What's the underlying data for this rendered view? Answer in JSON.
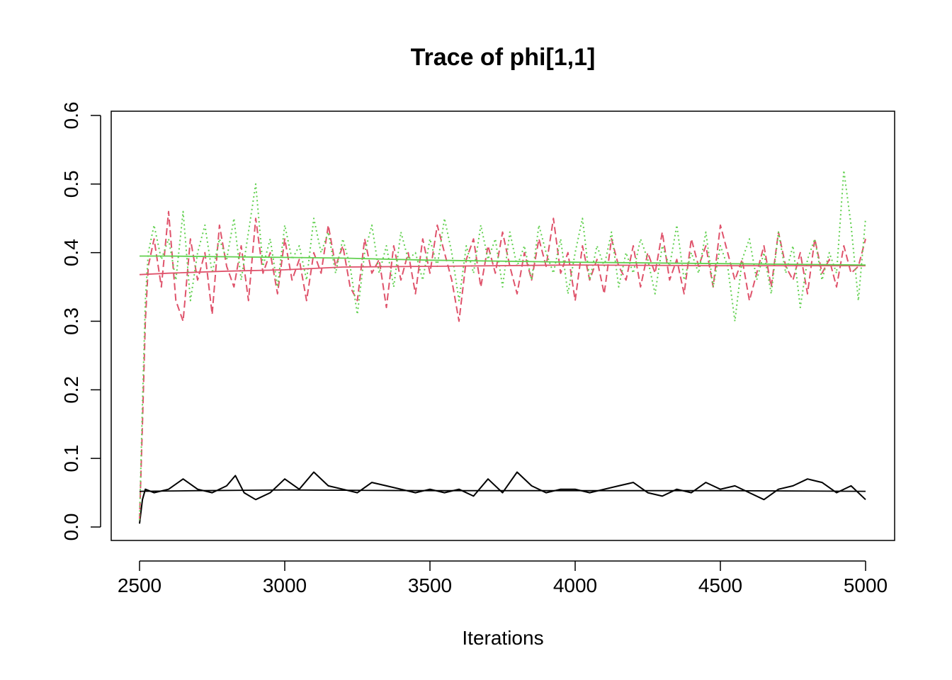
{
  "chart_data": {
    "type": "line",
    "title": "Trace of phi[1,1]",
    "xlabel": "Iterations",
    "ylabel": "",
    "xlim": [
      2500,
      5000
    ],
    "ylim": [
      0.0,
      0.6
    ],
    "x_ticks": [
      2500,
      3000,
      3500,
      4000,
      4500,
      5000
    ],
    "x_tick_labels": [
      "2500",
      "3000",
      "3500",
      "4000",
      "4500",
      "5000"
    ],
    "y_ticks": [
      0.0,
      0.1,
      0.2,
      0.3,
      0.4,
      0.5,
      0.6
    ],
    "y_tick_labels": [
      "0.0",
      "0.1",
      "0.2",
      "0.3",
      "0.4",
      "0.5",
      "0.6"
    ],
    "grid": false,
    "legend": "none",
    "series": [
      {
        "color": "#000000",
        "line_style": "solid",
        "x": [
          2500,
          2510,
          2520,
          2550,
          2600,
          2650,
          2700,
          2750,
          2800,
          2830,
          2860,
          2900,
          2950,
          3000,
          3050,
          3100,
          3150,
          3200,
          3250,
          3300,
          3350,
          3400,
          3450,
          3500,
          3550,
          3600,
          3650,
          3700,
          3750,
          3800,
          3850,
          3900,
          3950,
          4000,
          4050,
          4100,
          4150,
          4200,
          4250,
          4300,
          4350,
          4400,
          4450,
          4500,
          4550,
          4600,
          4650,
          4700,
          4750,
          4800,
          4850,
          4900,
          4950,
          5000
        ],
        "values": [
          0.005,
          0.04,
          0.055,
          0.05,
          0.055,
          0.07,
          0.055,
          0.05,
          0.06,
          0.075,
          0.05,
          0.04,
          0.05,
          0.07,
          0.055,
          0.08,
          0.06,
          0.055,
          0.05,
          0.065,
          0.06,
          0.055,
          0.05,
          0.055,
          0.05,
          0.055,
          0.045,
          0.07,
          0.05,
          0.08,
          0.06,
          0.05,
          0.055,
          0.055,
          0.05,
          0.055,
          0.06,
          0.065,
          0.05,
          0.045,
          0.055,
          0.05,
          0.065,
          0.055,
          0.06,
          0.05,
          0.04,
          0.055,
          0.06,
          0.07,
          0.065,
          0.05,
          0.06,
          0.04
        ]
      },
      {
        "color": "#DF536B",
        "line_style": "dashed",
        "x": [
          2500,
          2510,
          2520,
          2530,
          2550,
          2575,
          2600,
          2625,
          2650,
          2675,
          2700,
          2725,
          2750,
          2775,
          2800,
          2825,
          2850,
          2875,
          2900,
          2925,
          2950,
          2975,
          3000,
          3025,
          3050,
          3075,
          3100,
          3125,
          3150,
          3175,
          3200,
          3225,
          3250,
          3275,
          3300,
          3325,
          3350,
          3375,
          3400,
          3425,
          3450,
          3475,
          3500,
          3525,
          3550,
          3575,
          3600,
          3625,
          3650,
          3675,
          3700,
          3725,
          3750,
          3775,
          3800,
          3825,
          3850,
          3875,
          3900,
          3925,
          3950,
          3975,
          4000,
          4025,
          4050,
          4075,
          4100,
          4125,
          4150,
          4175,
          4200,
          4225,
          4250,
          4275,
          4300,
          4325,
          4350,
          4375,
          4400,
          4425,
          4450,
          4475,
          4500,
          4525,
          4550,
          4575,
          4600,
          4625,
          4650,
          4675,
          4700,
          4725,
          4750,
          4775,
          4800,
          4825,
          4850,
          4875,
          4900,
          4925,
          4950,
          4975,
          5000
        ],
        "values": [
          0.01,
          0.15,
          0.3,
          0.38,
          0.42,
          0.35,
          0.46,
          0.33,
          0.3,
          0.42,
          0.36,
          0.4,
          0.31,
          0.44,
          0.38,
          0.35,
          0.41,
          0.33,
          0.45,
          0.37,
          0.4,
          0.34,
          0.42,
          0.36,
          0.39,
          0.33,
          0.4,
          0.37,
          0.44,
          0.38,
          0.41,
          0.35,
          0.33,
          0.42,
          0.37,
          0.39,
          0.32,
          0.41,
          0.36,
          0.4,
          0.34,
          0.42,
          0.37,
          0.44,
          0.4,
          0.36,
          0.3,
          0.39,
          0.42,
          0.35,
          0.41,
          0.37,
          0.43,
          0.38,
          0.34,
          0.4,
          0.36,
          0.42,
          0.38,
          0.45,
          0.37,
          0.4,
          0.33,
          0.41,
          0.36,
          0.39,
          0.34,
          0.42,
          0.38,
          0.36,
          0.41,
          0.35,
          0.4,
          0.37,
          0.43,
          0.36,
          0.39,
          0.34,
          0.42,
          0.38,
          0.41,
          0.35,
          0.44,
          0.4,
          0.36,
          0.39,
          0.33,
          0.37,
          0.41,
          0.35,
          0.43,
          0.38,
          0.36,
          0.4,
          0.34,
          0.42,
          0.37,
          0.39,
          0.35,
          0.41,
          0.37,
          0.38,
          0.42
        ]
      },
      {
        "color": "#61D04F",
        "line_style": "dotted",
        "x": [
          2500,
          2510,
          2520,
          2530,
          2550,
          2575,
          2600,
          2625,
          2650,
          2675,
          2700,
          2725,
          2750,
          2775,
          2800,
          2825,
          2850,
          2875,
          2900,
          2925,
          2950,
          2975,
          3000,
          3025,
          3050,
          3075,
          3100,
          3125,
          3150,
          3175,
          3200,
          3225,
          3250,
          3275,
          3300,
          3325,
          3350,
          3375,
          3400,
          3425,
          3450,
          3475,
          3500,
          3525,
          3550,
          3575,
          3600,
          3625,
          3650,
          3675,
          3700,
          3725,
          3750,
          3775,
          3800,
          3825,
          3850,
          3875,
          3900,
          3925,
          3950,
          3975,
          4000,
          4025,
          4050,
          4075,
          4100,
          4125,
          4150,
          4175,
          4200,
          4225,
          4250,
          4275,
          4300,
          4325,
          4350,
          4375,
          4400,
          4425,
          4450,
          4475,
          4500,
          4525,
          4550,
          4575,
          4600,
          4625,
          4650,
          4675,
          4700,
          4725,
          4750,
          4775,
          4800,
          4825,
          4850,
          4875,
          4900,
          4925,
          4950,
          4975,
          5000
        ],
        "values": [
          0.01,
          0.18,
          0.33,
          0.4,
          0.44,
          0.39,
          0.42,
          0.36,
          0.46,
          0.33,
          0.4,
          0.44,
          0.37,
          0.42,
          0.39,
          0.45,
          0.36,
          0.43,
          0.5,
          0.38,
          0.42,
          0.35,
          0.44,
          0.39,
          0.41,
          0.36,
          0.45,
          0.4,
          0.43,
          0.37,
          0.42,
          0.38,
          0.31,
          0.4,
          0.44,
          0.37,
          0.41,
          0.35,
          0.43,
          0.39,
          0.4,
          0.36,
          0.42,
          0.38,
          0.45,
          0.4,
          0.33,
          0.41,
          0.37,
          0.44,
          0.39,
          0.42,
          0.35,
          0.43,
          0.38,
          0.41,
          0.36,
          0.44,
          0.4,
          0.37,
          0.42,
          0.34,
          0.4,
          0.45,
          0.36,
          0.41,
          0.38,
          0.43,
          0.35,
          0.4,
          0.37,
          0.42,
          0.39,
          0.34,
          0.41,
          0.38,
          0.44,
          0.36,
          0.4,
          0.37,
          0.43,
          0.35,
          0.41,
          0.38,
          0.3,
          0.39,
          0.42,
          0.36,
          0.4,
          0.34,
          0.43,
          0.37,
          0.41,
          0.32,
          0.39,
          0.42,
          0.36,
          0.4,
          0.37,
          0.52,
          0.44,
          0.33,
          0.45
        ]
      }
    ],
    "reference_lines": [
      {
        "color": "#000000",
        "x": [
          2500,
          2700,
          3000,
          3500,
          4000,
          4500,
          5000
        ],
        "values": [
          0.052,
          0.053,
          0.054,
          0.053,
          0.053,
          0.053,
          0.052
        ]
      },
      {
        "color": "#DF536B",
        "x": [
          2500,
          2600,
          2800,
          3000,
          3200,
          3500,
          4000,
          4500,
          5000
        ],
        "values": [
          0.368,
          0.37,
          0.373,
          0.375,
          0.379,
          0.38,
          0.382,
          0.381,
          0.381
        ]
      },
      {
        "color": "#61D04F",
        "x": [
          2500,
          2600,
          2800,
          3000,
          3200,
          3500,
          4000,
          4500,
          5000
        ],
        "values": [
          0.395,
          0.395,
          0.394,
          0.393,
          0.392,
          0.389,
          0.386,
          0.384,
          0.382
        ]
      }
    ]
  }
}
